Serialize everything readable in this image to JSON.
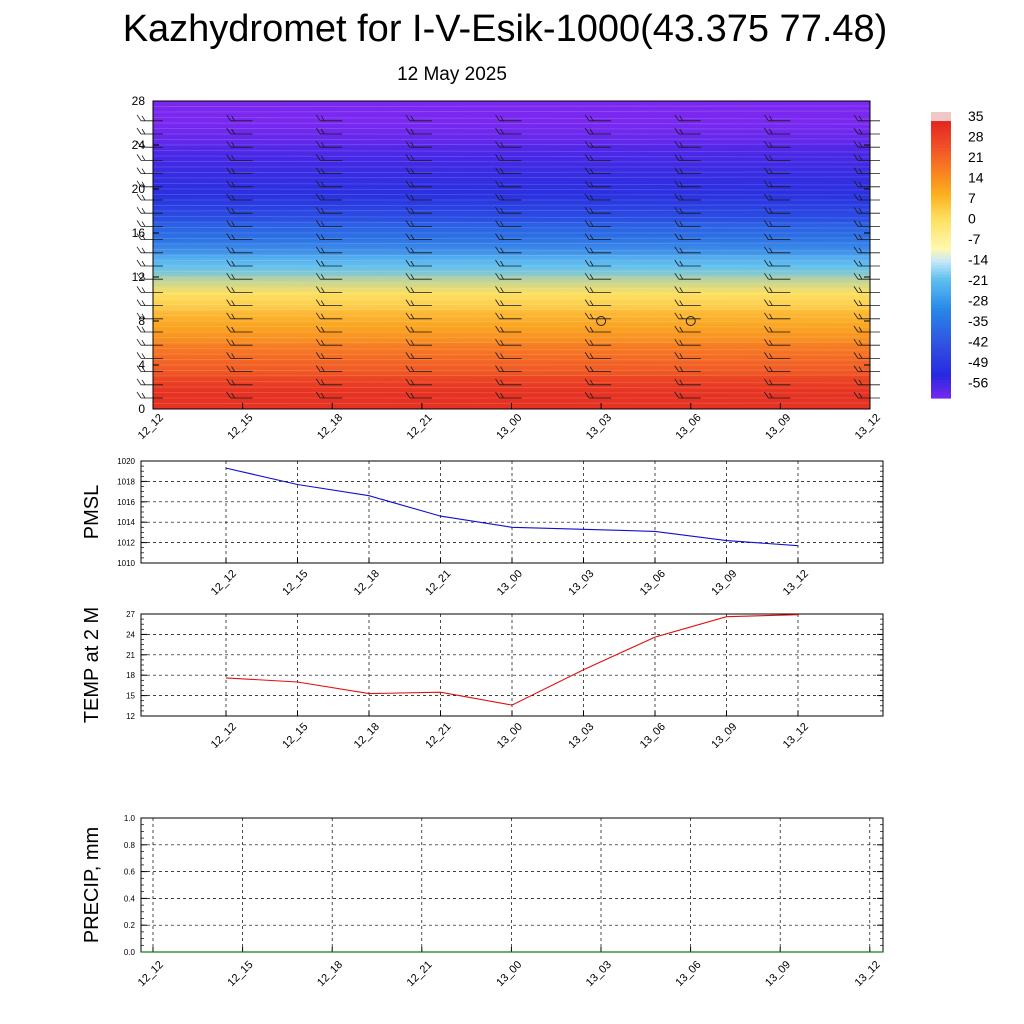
{
  "header": {
    "title": "Kazhydromet for I-V-Esik-1000(43.375 77.48)",
    "date": "12 May 2025"
  },
  "colorbar": {
    "labels": [
      "35",
      "28",
      "21",
      "14",
      "7",
      "0",
      "-7",
      "-14",
      "-21",
      "-28",
      "-35",
      "-42",
      "-49",
      "-56"
    ],
    "colors": [
      "#f0c8c8",
      "#e02828",
      "#f05028",
      "#f88020",
      "#fcb020",
      "#fde060",
      "#fff8b0",
      "#c8e8f8",
      "#60c0f0",
      "#2888e8",
      "#4068d8",
      "#3050e0",
      "#2828e0",
      "#7a28f0"
    ]
  },
  "chart_data": [
    {
      "type": "heatmap",
      "name": "Temperature and wind profile",
      "x_labels": [
        "12_12",
        "12_15",
        "12_18",
        "12_21",
        "13_00",
        "13_03",
        "13_06",
        "13_09",
        "13_12"
      ],
      "y_ticks": [
        0,
        4,
        8,
        12,
        16,
        20,
        24,
        28
      ],
      "ylim": [
        0,
        28
      ],
      "temperature_bands": [
        {
          "y_from": 0,
          "y_to": 3,
          "value_c": 30
        },
        {
          "y_from": 3,
          "y_to": 6,
          "value_c": 20
        },
        {
          "y_from": 6,
          "y_to": 9,
          "value_c": 10
        },
        {
          "y_from": 9,
          "y_to": 12,
          "value_c": 0
        },
        {
          "y_from": 12,
          "y_to": 14,
          "value_c": -20
        },
        {
          "y_from": 14,
          "y_to": 17,
          "value_c": -35
        },
        {
          "y_from": 17,
          "y_to": 22,
          "value_c": -50
        },
        {
          "y_from": 22,
          "y_to": 24,
          "value_c": -55
        },
        {
          "y_from": 24,
          "y_to": 28,
          "value_c": -60
        }
      ],
      "calm_markers": [
        {
          "x_index": 5,
          "y": 8
        },
        {
          "x_index": 6,
          "y": 8
        }
      ]
    },
    {
      "type": "line",
      "ylabel": "PMSL",
      "x_labels": [
        "12_12",
        "12_15",
        "12_18",
        "12_21",
        "13_00",
        "13_03",
        "13_06",
        "13_09",
        "13_12"
      ],
      "ylim": [
        1010,
        1020
      ],
      "y_ticks": [
        1010,
        1012,
        1014,
        1016,
        1018,
        1020
      ],
      "color": "#1010d0",
      "values": [
        1019.3,
        1017.7,
        1016.6,
        1014.6,
        1013.5,
        1013.3,
        1013.1,
        1012.2,
        1011.7
      ]
    },
    {
      "type": "line",
      "ylabel": "TEMP at 2 M",
      "x_labels": [
        "12_12",
        "12_15",
        "12_18",
        "12_21",
        "13_00",
        "13_03",
        "13_06",
        "13_09",
        "13_12"
      ],
      "ylim": [
        12,
        27
      ],
      "y_ticks": [
        12,
        15,
        18,
        21,
        24,
        27
      ],
      "color": "#e01010",
      "values": [
        17.6,
        17.0,
        15.3,
        15.5,
        13.6,
        18.8,
        23.6,
        26.6,
        26.9
      ]
    },
    {
      "type": "line",
      "ylabel": "PRECIP, mm",
      "x_labels": [
        "12_12",
        "12_15",
        "12_18",
        "12_21",
        "13_00",
        "13_03",
        "13_06",
        "13_09",
        "13_12"
      ],
      "ylim": [
        0,
        1
      ],
      "y_ticks": [
        "0.0",
        "0.2",
        "0.4",
        "0.6",
        "0.8",
        "1.0"
      ],
      "color": "#1a7a1a",
      "values": [
        0,
        0,
        0,
        0,
        0,
        0,
        0,
        0,
        0
      ]
    }
  ]
}
